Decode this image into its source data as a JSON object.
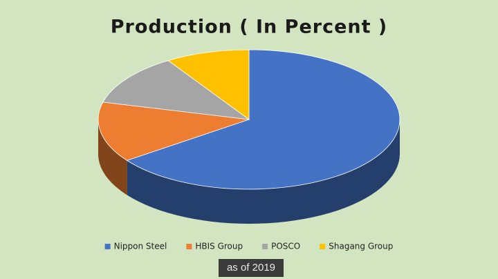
{
  "chart_data": {
    "type": "pie3d",
    "title": "Production ( In Percent )",
    "categories": [
      "Nippon Steel",
      "HBIS Group",
      "POSCO",
      "Shagang Group"
    ],
    "values": [
      65,
      14,
      12,
      9
    ],
    "colors": [
      "#4472c4",
      "#ed7d31",
      "#a5a5a5",
      "#ffc000"
    ],
    "legend": "bottom",
    "caption": "as of 2019"
  }
}
